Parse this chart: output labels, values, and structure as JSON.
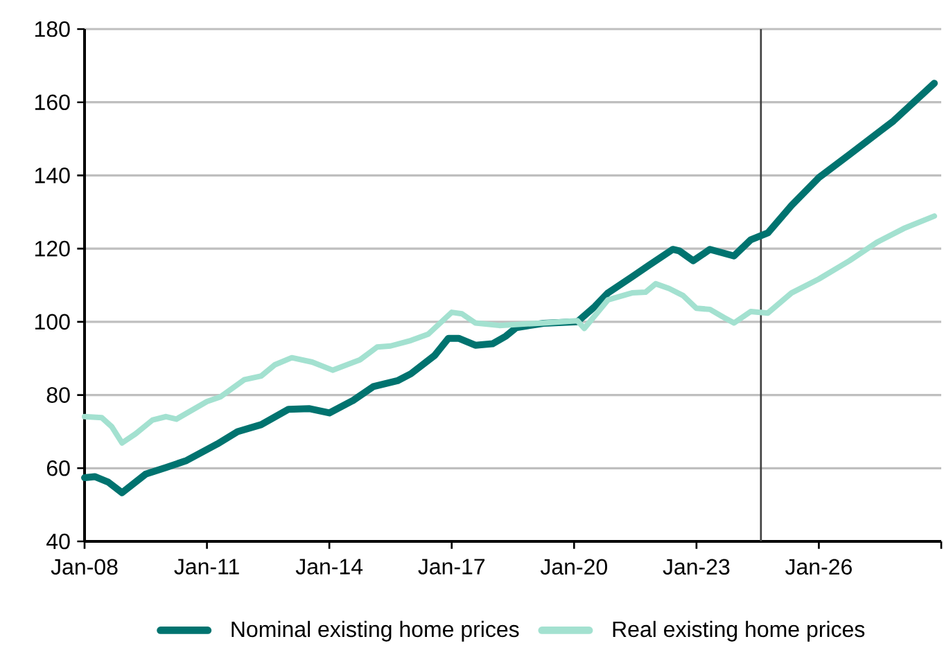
{
  "chart_data": {
    "type": "line",
    "xlim": [
      "2008-01",
      "2029-01"
    ],
    "ylim": [
      40,
      180
    ],
    "xticks": [
      {
        "value": "2008-01",
        "label": "Jan-08"
      },
      {
        "value": "2011-01",
        "label": "Jan-11"
      },
      {
        "value": "2014-01",
        "label": "Jan-14"
      },
      {
        "value": "2017-01",
        "label": "Jan-17"
      },
      {
        "value": "2020-01",
        "label": "Jan-20"
      },
      {
        "value": "2023-01",
        "label": "Jan-23"
      },
      {
        "value": "2026-01",
        "label": "Jan-26"
      },
      {
        "value": "2029-01",
        "label": null
      }
    ],
    "yticks": [
      40,
      60,
      80,
      100,
      120,
      140,
      160,
      180
    ],
    "grid": "y",
    "legend": "bottom",
    "ref_lines": [
      {
        "axis": "x",
        "value": "2024-08",
        "color": "#404040"
      }
    ],
    "series": [
      {
        "name": "Nominal existing home prices",
        "color": "#00736f",
        "x": [
          "2008-01",
          "2008-04",
          "2008-08",
          "2008-12",
          "2009-07",
          "2010-01",
          "2010-07",
          "2011-04",
          "2011-10",
          "2012-05",
          "2013-01",
          "2013-07",
          "2014-01",
          "2014-08",
          "2015-02",
          "2015-09",
          "2016-01",
          "2016-08",
          "2016-12",
          "2017-03",
          "2017-08",
          "2018-01",
          "2018-05",
          "2018-08",
          "2019-04",
          "2020-02",
          "2020-07",
          "2020-11",
          "2021-06",
          "2021-11",
          "2022-06",
          "2022-08",
          "2022-12",
          "2023-05",
          "2023-12",
          "2024-05",
          "2024-10",
          "2025-05",
          "2026-01",
          "2026-10",
          "2027-11",
          "2028-11"
        ],
        "values": [
          57.4,
          57.7,
          56.2,
          53.3,
          58.4,
          60.2,
          62.1,
          66.6,
          70.0,
          71.9,
          76.1,
          76.3,
          75.1,
          78.5,
          82.3,
          83.9,
          85.8,
          90.8,
          95.5,
          95.5,
          93.6,
          94.0,
          96.1,
          98.4,
          99.6,
          100,
          104.1,
          107.9,
          112.3,
          115.4,
          119.8,
          119.4,
          116.7,
          119.8,
          118.0,
          122.4,
          124.3,
          131.8,
          139.4,
          145.7,
          154.9,
          165.2
        ]
      },
      {
        "name": "Real existing home prices",
        "color": "#a3e1d0",
        "x": [
          "2008-01",
          "2008-06",
          "2008-09",
          "2008-12",
          "2009-04",
          "2009-09",
          "2010-01",
          "2010-04",
          "2011-01",
          "2011-05",
          "2011-12",
          "2012-05",
          "2012-09",
          "2013-02",
          "2013-08",
          "2014-02",
          "2014-10",
          "2015-03",
          "2015-07",
          "2016-01",
          "2016-06",
          "2017-01",
          "2017-04",
          "2017-08",
          "2018-03",
          "2019-04",
          "2020-02",
          "2020-04",
          "2020-11",
          "2021-06",
          "2021-10",
          "2022-01",
          "2022-05",
          "2022-09",
          "2023-01",
          "2023-05",
          "2023-09",
          "2023-12",
          "2024-05",
          "2024-10",
          "2025-05",
          "2026-01",
          "2026-10",
          "2027-06",
          "2028-02",
          "2028-11"
        ],
        "values": [
          74.1,
          73.8,
          71.3,
          66.9,
          69.4,
          73.2,
          74.1,
          73.4,
          78.2,
          79.5,
          84.2,
          85.2,
          88.3,
          90.2,
          89.0,
          86.8,
          89.6,
          93.1,
          93.4,
          94.9,
          96.6,
          102.6,
          102.2,
          99.7,
          99.0,
          99.7,
          100.3,
          98.2,
          106.0,
          107.9,
          108.1,
          110.4,
          109.1,
          107.2,
          103.7,
          103.4,
          101.2,
          99.7,
          102.8,
          102.4,
          107.9,
          111.7,
          116.7,
          121.7,
          125.5,
          128.9
        ]
      }
    ]
  }
}
